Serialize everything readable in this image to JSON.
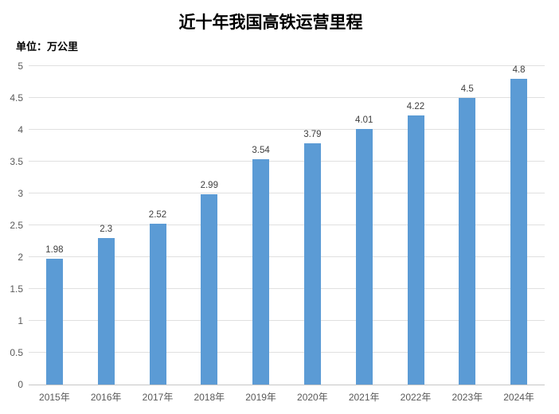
{
  "title": "近十年我国高铁运营里程",
  "unit_label": "单位：万公里",
  "colors": {
    "bar": "#5b9bd5",
    "gridline": "#e0e0e0",
    "axis_line": "#c6c6c6",
    "tick_text": "#595959",
    "data_label": "#404040",
    "title_text": "#000000",
    "background": "#ffffff"
  },
  "chart_data": {
    "type": "bar",
    "title": "近十年我国高铁运营里程",
    "subtitle": "单位：万公里",
    "categories": [
      "2015年",
      "2016年",
      "2017年",
      "2018年",
      "2019年",
      "2020年",
      "2021年",
      "2022年",
      "2023年",
      "2024年"
    ],
    "values": [
      1.98,
      2.3,
      2.52,
      2.99,
      3.54,
      3.79,
      4.01,
      4.22,
      4.5,
      4.8
    ],
    "data_labels": [
      "1.98",
      "2.3",
      "2.52",
      "2.99",
      "3.54",
      "3.79",
      "4.01",
      "4.22",
      "4.5",
      "4.8"
    ],
    "xlabel": "",
    "ylabel": "单位：万公里",
    "ylim": [
      0,
      5
    ],
    "yticks": [
      0,
      0.5,
      1,
      1.5,
      2,
      2.5,
      3,
      3.5,
      4,
      4.5,
      5
    ],
    "grid": "horizontal",
    "legend": "none"
  }
}
